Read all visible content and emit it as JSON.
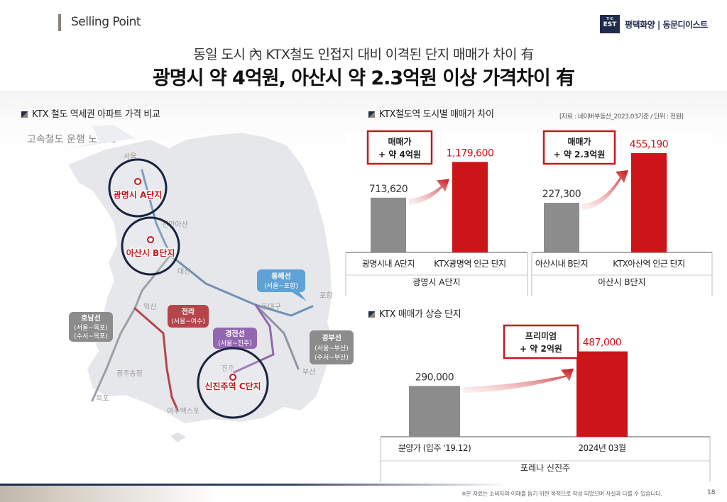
{
  "header": {
    "label": "Selling Point",
    "logo_small": "THE",
    "logo_big": "EST",
    "brand": "평택화양 | 동문디이스트"
  },
  "title": {
    "line1": "동일 도시 內 KTX철도 인접지 대비 이격된 단지 매매가 차이 有",
    "line2": "광명시 약 4억원, 아산시 약 2.3억원 이상 가격차이 有"
  },
  "map": {
    "section_title": "KTX 철도 역세권 아파트 가격 비교",
    "subtitle": "고속철도 운행 노선도",
    "city_labels": [
      "서울",
      "천안아산",
      "대전",
      "익산",
      "광주송정",
      "목포",
      "여수엑스포",
      "동대구",
      "포항",
      "부산",
      "진주"
    ],
    "route_boxes": [
      {
        "name": "호남선",
        "desc1": "(서울~목포)",
        "desc2": "(수서~목포)",
        "color": "#8c8c8c"
      },
      {
        "name": "전라",
        "desc1": "(서울~여수)",
        "color": "#b5454b"
      },
      {
        "name": "경전선",
        "desc1": "(서울~진주)",
        "color": "#9367b0"
      },
      {
        "name": "동해선",
        "desc1": "(서울~포항)",
        "color": "#5fa3d6"
      },
      {
        "name": "경부선",
        "desc1": "(서울~부산)",
        "desc2": "(수서~부산)",
        "color": "#8c8c8c"
      }
    ],
    "highlights": [
      "광명시 A단지",
      "아산시 B단지",
      "신진주역 C단지"
    ]
  },
  "city_section": {
    "title": "KTX철도역 도시별 매매가 차이",
    "source": "[자료 : 네이버부동산_2023.03기준 / 단위 : 천원]"
  },
  "rise_section": {
    "title": "KTX 매매가 상승 단지"
  },
  "chart_data": [
    {
      "type": "bar",
      "group": "광명시 A단지",
      "categories": [
        "광명시내 A단지",
        "KTX광명역 인근 단지"
      ],
      "values": [
        713620,
        1179600
      ],
      "value_labels": [
        "713,620",
        "1,179,600"
      ],
      "ylim": [
        0,
        1350000
      ],
      "callout": [
        "매매가",
        "+ 약 4억원"
      ],
      "colors": [
        "#8c8c8c",
        "#cc1518"
      ]
    },
    {
      "type": "bar",
      "group": "아산시 B단지",
      "categories": [
        "아산시내 B단지",
        "KTX아산역 인근 단지"
      ],
      "values": [
        227300,
        455190
      ],
      "value_labels": [
        "227,300",
        "455,190"
      ],
      "ylim": [
        0,
        520000
      ],
      "callout": [
        "매매가",
        "+ 약 2.3억원"
      ],
      "colors": [
        "#8c8c8c",
        "#cc1518"
      ]
    },
    {
      "type": "bar",
      "group": "포레나 신진주",
      "categories": [
        "분양가 (입주 '19.12)",
        "2024년 03월"
      ],
      "values": [
        290000,
        487000
      ],
      "value_labels": [
        "290,000",
        "487,000"
      ],
      "ylim": [
        0,
        550000
      ],
      "callout": [
        "프리미엄",
        "+ 약 2억원"
      ],
      "colors": [
        "#8c8c8c",
        "#cc1518"
      ]
    }
  ],
  "footer": {
    "disclaimer": "※본 자료는 소비자의 이해를 돕기 위한 목적으로 작성 되었으며 사실과 다를 수 있습니다.",
    "page": "18"
  }
}
